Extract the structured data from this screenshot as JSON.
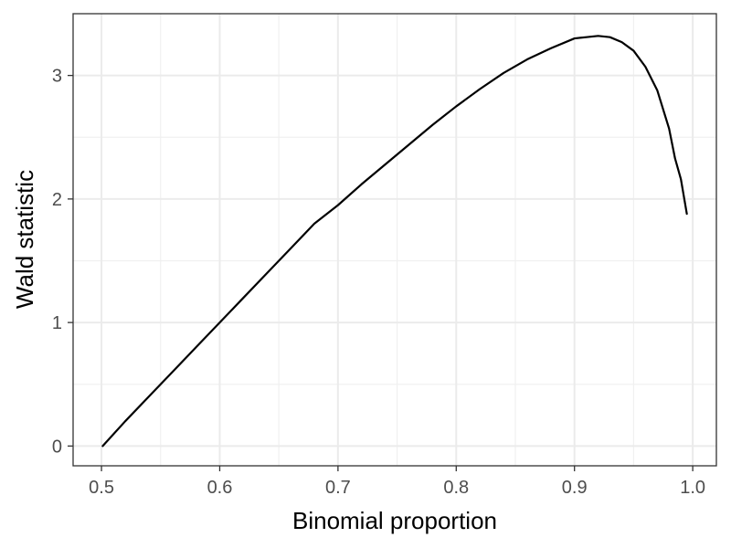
{
  "chart_data": {
    "type": "line",
    "title": "",
    "xlabel": "Binomial proportion",
    "ylabel": "Wald statistic",
    "xlim": [
      0.476,
      1.02
    ],
    "ylim": [
      -0.16,
      3.5
    ],
    "x_ticks": [
      0.5,
      0.6,
      0.7,
      0.8,
      0.9,
      1.0
    ],
    "x_tick_labels": [
      "0.5",
      "0.6",
      "0.7",
      "0.8",
      "0.9",
      "1.0"
    ],
    "y_ticks": [
      0,
      1,
      2,
      3
    ],
    "y_tick_labels": [
      "0",
      "1",
      "2",
      "3"
    ],
    "grid": true,
    "legend": "none",
    "series": [
      {
        "color": "#000000",
        "x": [
          0.501,
          0.52,
          0.54,
          0.56,
          0.58,
          0.6,
          0.62,
          0.64,
          0.66,
          0.68,
          0.7,
          0.72,
          0.74,
          0.76,
          0.78,
          0.8,
          0.82,
          0.84,
          0.86,
          0.88,
          0.9,
          0.91,
          0.92,
          0.93,
          0.94,
          0.95,
          0.96,
          0.97,
          0.98,
          0.985,
          0.99,
          0.995
        ],
        "y": [
          0.0,
          0.2,
          0.4,
          0.6,
          0.8,
          1.0,
          1.2,
          1.4,
          1.6,
          1.8,
          1.95,
          2.12,
          2.28,
          2.44,
          2.6,
          2.75,
          2.89,
          3.02,
          3.13,
          3.22,
          3.3,
          3.31,
          3.32,
          3.31,
          3.27,
          3.2,
          3.07,
          2.88,
          2.57,
          2.33,
          2.16,
          1.88
        ]
      }
    ]
  }
}
